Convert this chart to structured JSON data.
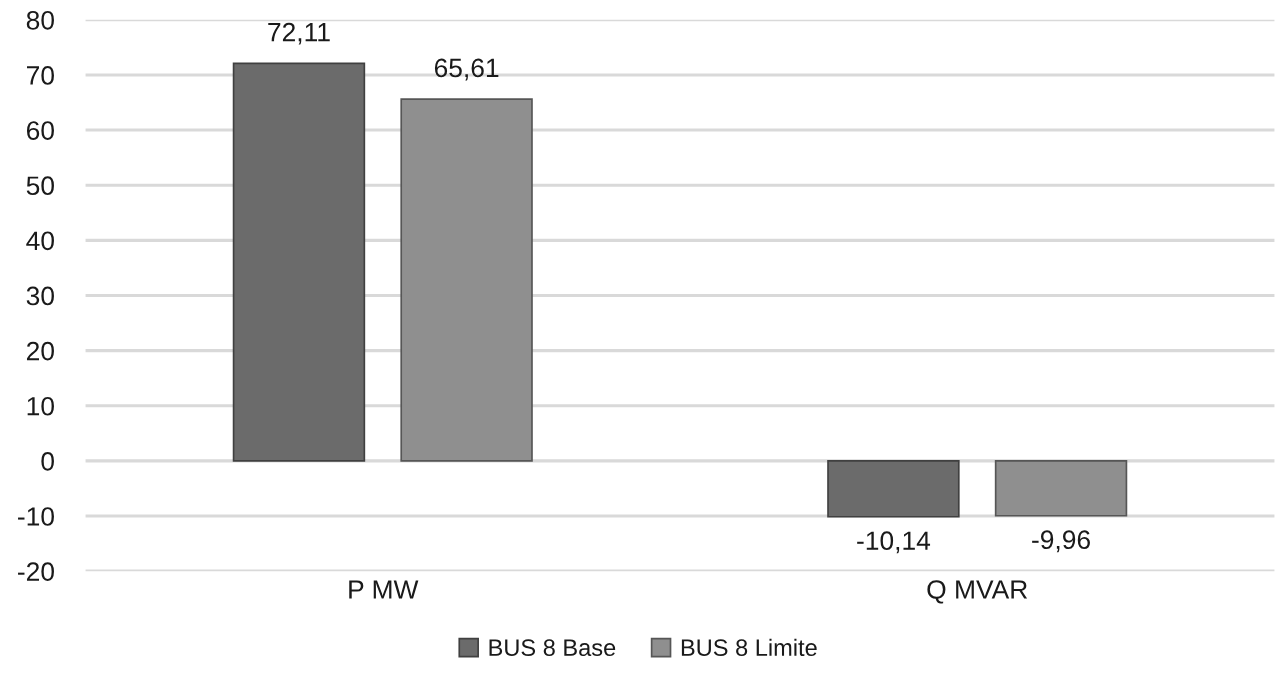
{
  "chart_data": {
    "type": "bar",
    "categories": [
      "P MW",
      "Q MVAR"
    ],
    "series": [
      {
        "name": "BUS 8 Base",
        "color": "#6b6b6b",
        "values": [
          72.11,
          -10.14
        ],
        "value_labels": [
          "72,11",
          "-10,14"
        ]
      },
      {
        "name": "BUS 8 Limite",
        "color": "#8f8f8f",
        "values": [
          65.61,
          -9.96
        ],
        "value_labels": [
          "65,61",
          "-9,96"
        ]
      }
    ],
    "ylim": [
      -20,
      80
    ],
    "yticks": [
      -20,
      -10,
      0,
      10,
      20,
      30,
      40,
      50,
      60,
      70,
      80
    ],
    "grid": "y",
    "legend": "bottom"
  }
}
